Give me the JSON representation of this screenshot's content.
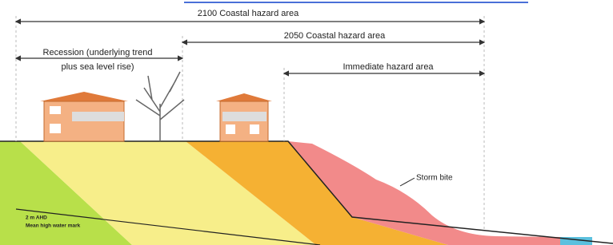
{
  "labels": {
    "zone_2100": "2100 Coastal hazard area",
    "zone_2050": "2050 Coastal hazard area",
    "recession_line1": "Recession (underlying trend",
    "recession_line2": "plus sea level rise)",
    "immediate": "Immediate hazard area",
    "storm_bite": "Storm bite",
    "ahd": "2 m AHD",
    "mhwm": "Mean high water mark"
  }
}
